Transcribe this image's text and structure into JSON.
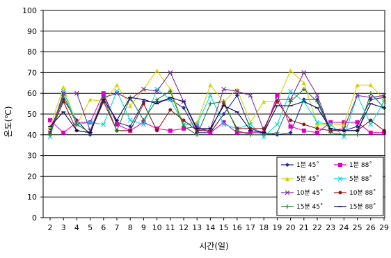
{
  "chart_data": {
    "type": "line",
    "xlabel": "시간(일)",
    "ylabel": "온도(℃)",
    "ylim": [
      0,
      100
    ],
    "yticks": [
      0,
      10,
      20,
      30,
      40,
      50,
      60,
      70,
      80,
      90,
      100
    ],
    "categories": [
      "2",
      "3",
      "4",
      "5",
      "6",
      "7",
      "8",
      "9",
      "10",
      "11",
      "12",
      "13",
      "14",
      "15",
      "16",
      "17",
      "18",
      "19",
      "20",
      "21",
      "22",
      "23",
      "24",
      "25",
      "26",
      "29"
    ],
    "grid": true,
    "legend_position": "bottom-right",
    "series": [
      {
        "name": "1분 45˚",
        "color": "#1f2f8f",
        "marker": "diamond",
        "values": [
          43,
          57,
          47,
          40,
          59,
          46,
          44,
          56,
          56,
          57,
          53,
          41,
          41,
          50,
          59,
          43,
          41,
          40,
          41,
          57,
          57,
          42,
          42,
          44,
          57,
          58
        ]
      },
      {
        "name": "1분 88˚",
        "color": "#e000c0",
        "marker": "square",
        "values": [
          47,
          41,
          46,
          46,
          60,
          45,
          42,
          46,
          43,
          42,
          43,
          44,
          41,
          46,
          41,
          41,
          41,
          59,
          44,
          42,
          41,
          46,
          46,
          46,
          41,
          41
        ]
      },
      {
        "name": "5분 45˚",
        "color": "#d8d000",
        "marker": "triangle",
        "values": [
          44,
          63,
          45,
          57,
          56,
          64,
          54,
          62,
          71,
          62,
          45,
          46,
          64,
          56,
          62,
          46,
          56,
          56,
          71,
          65,
          45,
          45,
          45,
          64,
          64,
          57
        ]
      },
      {
        "name": "5분 88˚",
        "color": "#00d8e0",
        "marker": "x",
        "values": [
          39,
          61,
          45,
          46,
          45,
          61,
          47,
          45,
          62,
          57,
          45,
          45,
          59,
          45,
          43,
          45,
          39,
          45,
          61,
          56,
          46,
          45,
          39,
          59,
          45,
          56
        ]
      },
      {
        "name": "10분 45˚",
        "color": "#7a2d9a",
        "marker": "x",
        "values": [
          41,
          60,
          60,
          42,
          58,
          60,
          57,
          62,
          61,
          70,
          56,
          42,
          43,
          62,
          61,
          59,
          42,
          57,
          57,
          70,
          59,
          42,
          43,
          59,
          58,
          59
        ]
      },
      {
        "name": "10분 88˚",
        "color": "#8a1a1a",
        "marker": "circle",
        "values": [
          41,
          56,
          42,
          41,
          56,
          42,
          42,
          55,
          42,
          52,
          47,
          42,
          42,
          55,
          43,
          43,
          43,
          56,
          47,
          45,
          43,
          42,
          42,
          42,
          47,
          42
        ]
      },
      {
        "name": "15분 45˚",
        "color": "#2a7a3a",
        "marker": "plus",
        "values": [
          40,
          59,
          45,
          41,
          58,
          42,
          58,
          47,
          57,
          61,
          44,
          40,
          55,
          56,
          42,
          40,
          40,
          41,
          56,
          62,
          56,
          41,
          40,
          40,
          60,
          53
        ]
      },
      {
        "name": "15분 88˚",
        "color": "#0a0a5a",
        "marker": "dash",
        "values": [
          44,
          51,
          42,
          41,
          57,
          47,
          58,
          57,
          55,
          58,
          56,
          43,
          43,
          54,
          51,
          42,
          41,
          54,
          54,
          56,
          53,
          43,
          42,
          42,
          55,
          53
        ]
      }
    ]
  }
}
